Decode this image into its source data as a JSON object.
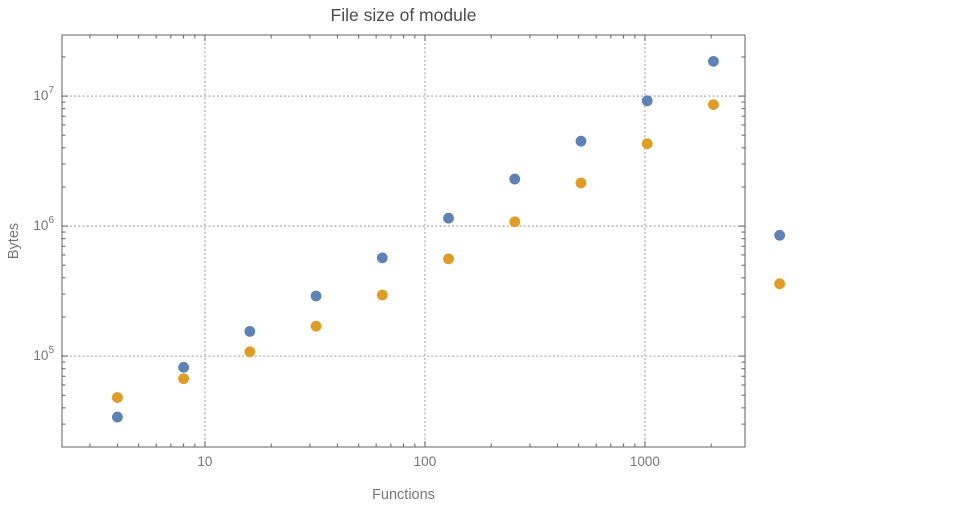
{
  "chart_data": {
    "type": "scatter",
    "title": "File size of module",
    "xlabel": "Functions",
    "ylabel": "Bytes",
    "x_scale": "log",
    "y_scale": "log",
    "xlim": [
      2.24,
      2850
    ],
    "ylim": [
      20000,
      29500000
    ],
    "grid": "dotted lines at each decade, both axes",
    "legend": "none",
    "x": [
      4,
      8,
      16,
      32,
      64,
      128,
      256,
      512,
      1024,
      2048,
      4096
    ],
    "series": [
      {
        "name": "blue",
        "color": "#5e82b5",
        "values": [
          34000,
          82000,
          155000,
          290000,
          570000,
          1150000,
          2300000,
          4500000,
          9200000,
          18500000,
          850000
        ]
      },
      {
        "name": "orange",
        "color": "#e19c24",
        "values": [
          48000,
          67000,
          108000,
          170000,
          295000,
          560000,
          1080000,
          2150000,
          4300000,
          8600000,
          360000
        ]
      }
    ],
    "x_tick_labels": [
      {
        "value": 10,
        "label": "10"
      },
      {
        "value": 100,
        "label": "100"
      },
      {
        "value": 1000,
        "label": "1000"
      }
    ],
    "y_tick_labels": [
      {
        "value": 100000,
        "mantissa": "10",
        "exponent": "5"
      },
      {
        "value": 1000000,
        "mantissa": "10",
        "exponent": "6"
      },
      {
        "value": 10000000,
        "mantissa": "10",
        "exponent": "7"
      }
    ],
    "colors": {
      "frame": "#626262",
      "grid": "#9a9a9a",
      "tick_label": "#767676",
      "title": "#4c4c4c"
    }
  }
}
